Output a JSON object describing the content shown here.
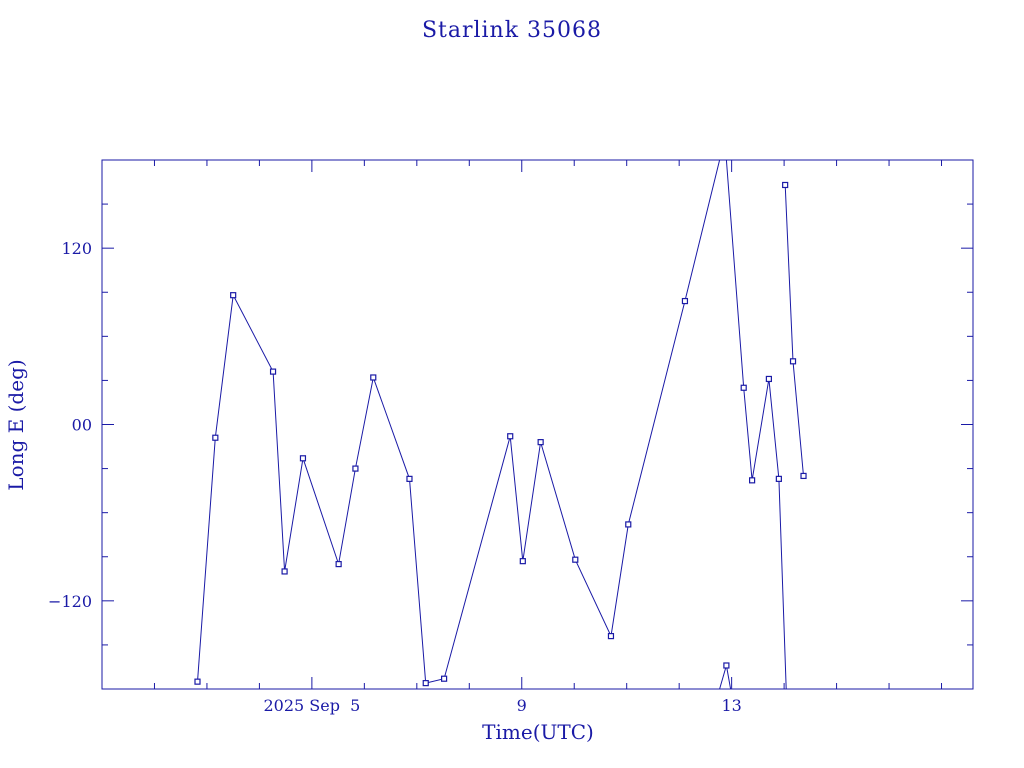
{
  "chart_data": {
    "type": "line",
    "title": "Starlink 35068",
    "xlabel": "Time(UTC)",
    "ylabel": "Long E (deg)",
    "x_unit": "days (September 2025, UTC)",
    "xlim": [
      1.0,
      17.6
    ],
    "ylim": [
      -180,
      180
    ],
    "y_major_ticks": [
      -120,
      0,
      120
    ],
    "y_tick_labels": [
      "−120",
      "00",
      "120"
    ],
    "y_minor_step": 30,
    "x_major_ticks": [
      5.0,
      9.0,
      13.0
    ],
    "x_tick_labels": [
      "2025 Sep  5",
      "9",
      "13"
    ],
    "x_minor_step": 1,
    "grid": false,
    "legend": "none",
    "color": "#1a1aa6",
    "segments": [
      [
        {
          "x": 2.82,
          "y": -175
        },
        {
          "x": 3.16,
          "y": -9
        },
        {
          "x": 3.5,
          "y": 88
        },
        {
          "x": 4.26,
          "y": 36
        },
        {
          "x": 4.48,
          "y": -100
        },
        {
          "x": 4.83,
          "y": -23
        },
        {
          "x": 5.51,
          "y": -95
        },
        {
          "x": 5.83,
          "y": -30
        },
        {
          "x": 6.17,
          "y": 32
        },
        {
          "x": 6.86,
          "y": -37
        },
        {
          "x": 7.17,
          "y": -176
        },
        {
          "x": 7.52,
          "y": -173
        },
        {
          "x": 8.78,
          "y": -8
        },
        {
          "x": 9.02,
          "y": -93
        },
        {
          "x": 9.36,
          "y": -12
        },
        {
          "x": 10.02,
          "y": -92
        },
        {
          "x": 10.7,
          "y": -144
        },
        {
          "x": 11.03,
          "y": -68
        },
        {
          "x": 12.11,
          "y": 84
        },
        {
          "x": 12.77,
          "y": 180
        }
      ],
      [
        {
          "x": 12.77,
          "y": 180
        },
        {
          "x": 12.9,
          "y": 180
        }
      ],
      [
        {
          "x": 12.9,
          "y": 180
        },
        {
          "x": 13.23,
          "y": 25
        },
        {
          "x": 13.39,
          "y": -38
        },
        {
          "x": 13.71,
          "y": 31
        },
        {
          "x": 13.9,
          "y": -37
        },
        {
          "x": 14.04,
          "y": -180
        }
      ],
      [
        {
          "x": 12.77,
          "y": -180
        },
        {
          "x": 12.9,
          "y": -164
        },
        {
          "x": 12.98,
          "y": -180
        }
      ],
      [
        {
          "x": 14.02,
          "y": 163
        },
        {
          "x": 14.17,
          "y": 43
        },
        {
          "x": 14.37,
          "y": -35
        }
      ]
    ],
    "markers": [
      {
        "x": 2.82,
        "y": -175
      },
      {
        "x": 3.16,
        "y": -9
      },
      {
        "x": 3.5,
        "y": 88
      },
      {
        "x": 4.26,
        "y": 36
      },
      {
        "x": 4.48,
        "y": -100
      },
      {
        "x": 4.83,
        "y": -23
      },
      {
        "x": 5.51,
        "y": -95
      },
      {
        "x": 5.83,
        "y": -30
      },
      {
        "x": 6.17,
        "y": 32
      },
      {
        "x": 6.86,
        "y": -37
      },
      {
        "x": 7.17,
        "y": -176
      },
      {
        "x": 7.52,
        "y": -173
      },
      {
        "x": 8.78,
        "y": -8
      },
      {
        "x": 9.02,
        "y": -93
      },
      {
        "x": 9.36,
        "y": -12
      },
      {
        "x": 10.02,
        "y": -92
      },
      {
        "x": 10.7,
        "y": -144
      },
      {
        "x": 11.03,
        "y": -68
      },
      {
        "x": 12.11,
        "y": 84
      },
      {
        "x": 12.9,
        "y": -164
      },
      {
        "x": 13.23,
        "y": 25
      },
      {
        "x": 13.39,
        "y": -38
      },
      {
        "x": 13.71,
        "y": 31
      },
      {
        "x": 13.9,
        "y": -37
      },
      {
        "x": 14.02,
        "y": 163
      },
      {
        "x": 14.17,
        "y": 43
      },
      {
        "x": 14.37,
        "y": -35
      }
    ]
  }
}
